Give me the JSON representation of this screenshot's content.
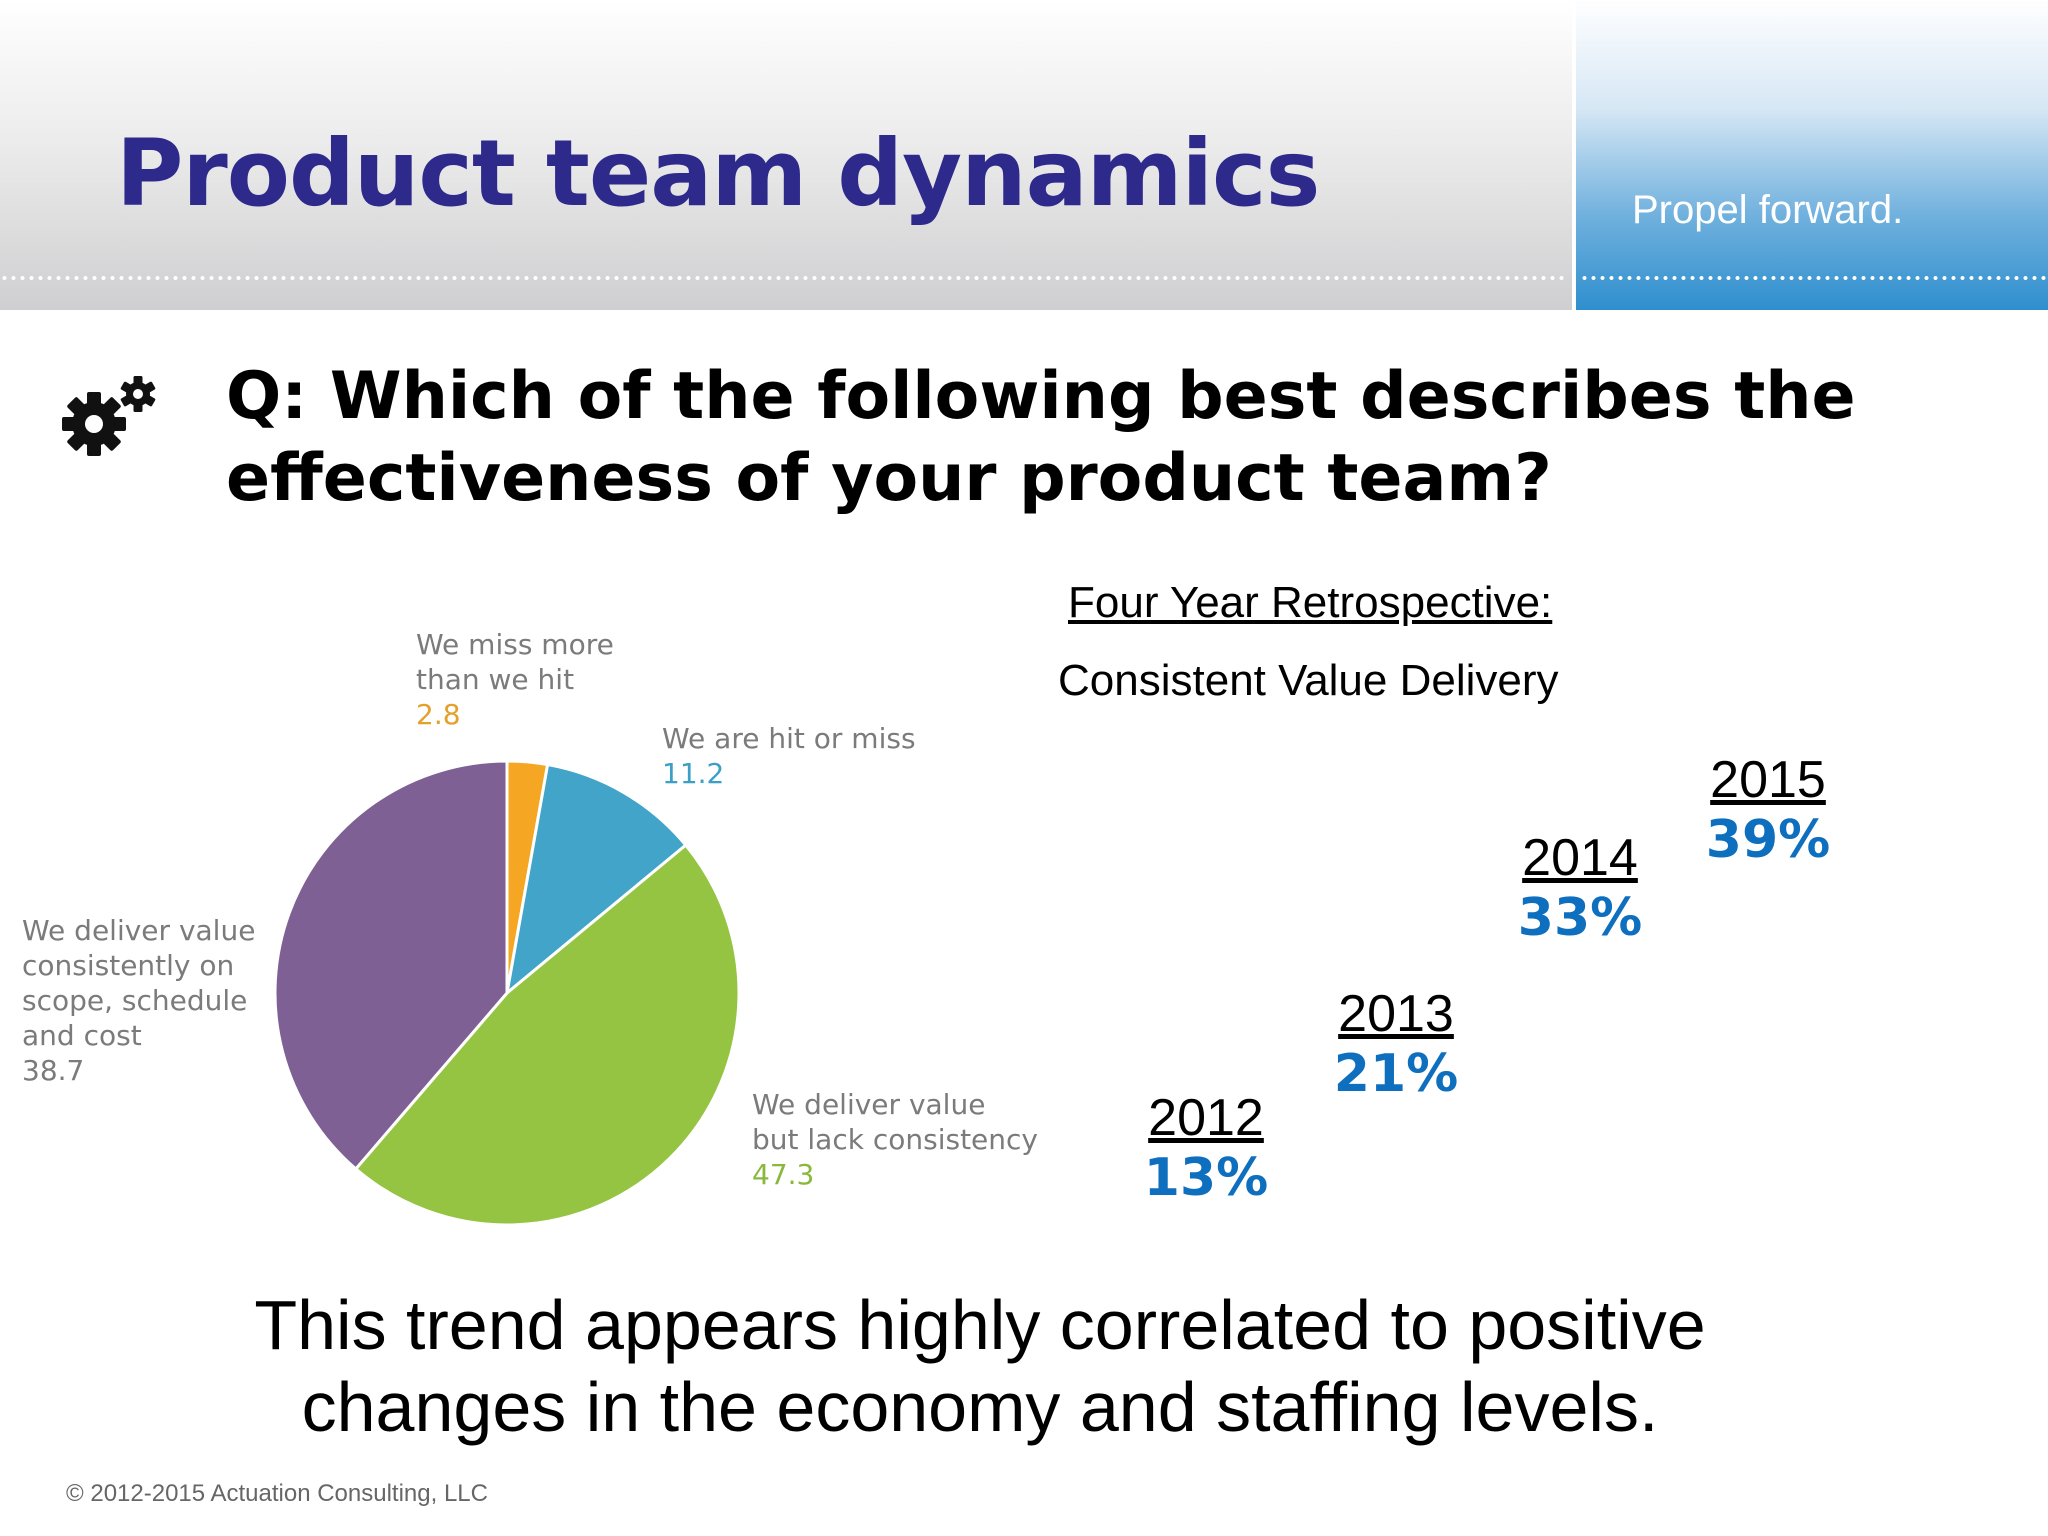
{
  "header": {
    "title": "Product team dynamics",
    "tagline": "Propel forward."
  },
  "icons": {
    "question_icon": "gears-icon"
  },
  "question": "Q: Which of the following best describes the effectiveness of your product team?",
  "colors": {
    "title": "#2e2a8c",
    "percent": "#0f6fbf",
    "slice_orange": "#f5a623",
    "slice_blue": "#42a4c8",
    "slice_green": "#95c442",
    "slice_purple": "#7e6094"
  },
  "chart_data": [
    {
      "type": "pie",
      "title": "",
      "slices": [
        {
          "label_lines": [
            "We miss more",
            "than we hit"
          ],
          "value": 2.8,
          "value_text": "2.8",
          "color": "#f5a623",
          "label_color": "#e3a12c"
        },
        {
          "label_lines": [
            "We are hit or miss"
          ],
          "value": 11.2,
          "value_text": "11.2",
          "color": "#42a4c8",
          "label_color": "#3c9fc6"
        },
        {
          "label_lines": [
            "We deliver value",
            "but lack consistency"
          ],
          "value": 47.3,
          "value_text": "47.3",
          "color": "#95c442",
          "label_color": "#8ab83c"
        },
        {
          "label_lines": [
            "We deliver value",
            "consistently on",
            "scope, schedule",
            "and cost"
          ],
          "value": 38.7,
          "value_text": "38.7",
          "color": "#7e6094",
          "label_color": "#7b7b7b"
        }
      ]
    },
    {
      "type": "table",
      "title": "Four Year Retrospective:",
      "subtitle": "Consistent Value Delivery",
      "categories": [
        "2012",
        "2013",
        "2014",
        "2015"
      ],
      "values": [
        13,
        21,
        33,
        39
      ],
      "value_labels": [
        "13%",
        "21%",
        "33%",
        "39%"
      ]
    }
  ],
  "conclusion": "This trend appears highly correlated to positive changes in the economy and staffing levels.",
  "footer": {
    "copyright": "© 2012-2015 Actuation Consulting, LLC"
  }
}
